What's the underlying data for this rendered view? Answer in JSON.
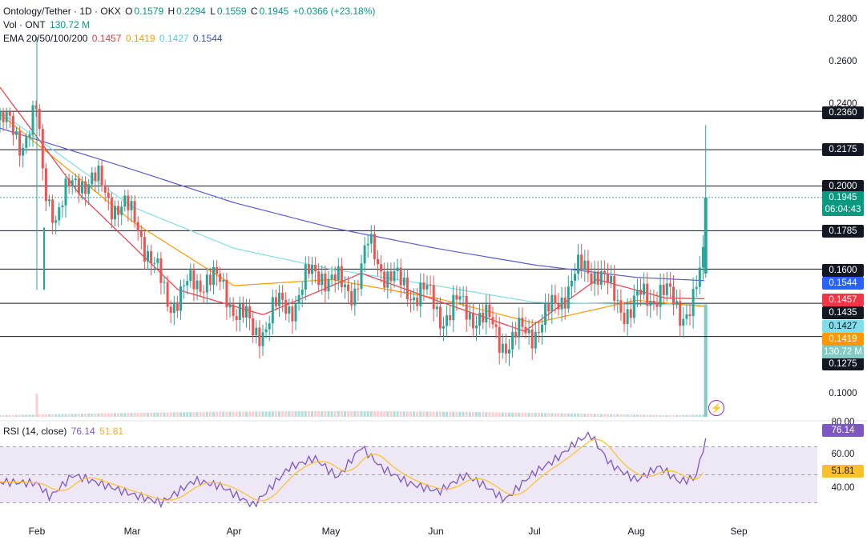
{
  "legend": {
    "symbol": "Ontology/Tether · 1D · OKX",
    "o_label": "O",
    "o": "0.1579",
    "h_label": "H",
    "h": "0.2294",
    "l_label": "L",
    "l": "0.1559",
    "c_label": "C",
    "c": "0.1945",
    "change": "+0.0366 (+23.18%)",
    "vol_label": "Vol · ONT",
    "vol": "130.72 M",
    "ema_label": "EMA 20/50/100/200",
    "ema20": "0.1457",
    "ema50": "0.1419",
    "ema100": "0.1427",
    "ema200": "0.1544",
    "rsi_label": "RSI (14, close)",
    "rsi": "76.14",
    "rsi_ma": "51.81"
  },
  "colors": {
    "up": "#26a69a",
    "down": "#ef5350",
    "ema20": "#f23645",
    "ema50": "#ff9800",
    "ema100": "#80deea",
    "ema200": "#5b5bd6",
    "rsi": "#7e57c2",
    "rsi_ma": "#fbc02d",
    "rsi_band": "#ede7f6",
    "hline": "#131722",
    "price_label": "#089981"
  },
  "price_axis": [
    "0.2800",
    "0.2600",
    "0.2400",
    "0.1000"
  ],
  "level_labels": [
    "0.2360",
    "0.2175",
    "0.2000",
    "0.1785",
    "0.1600",
    "0.1275"
  ],
  "price_badges": {
    "current": "0.1945",
    "countdown": "06:04:43",
    "ema200": "0.1544",
    "ema20": "0.1457",
    "level_1435": "0.1435",
    "ema100": "0.1427",
    "ema50": "0.1419",
    "volume": "130.72 M"
  },
  "rsi_axis": [
    "80.00",
    "60.00",
    "40.00"
  ],
  "rsi_badges": {
    "rsi": "76.14",
    "rsi_ma": "51.81"
  },
  "time_axis": [
    "Feb",
    "Mar",
    "Apr",
    "May",
    "Jun",
    "Jul",
    "Aug",
    "Sep"
  ],
  "alert_icon": "lightning-icon",
  "chart_data": {
    "type": "candlestick",
    "symbol": "Ontology/Tether",
    "interval": "1D",
    "exchange": "OKX",
    "last_candle": {
      "open": 0.1579,
      "high": 0.2294,
      "low": 0.1559,
      "close": 0.1945,
      "volume": "130.72 M"
    },
    "horizontal_levels": [
      0.236,
      0.2175,
      0.2,
      0.1785,
      0.16,
      0.1435,
      0.1275
    ],
    "y_range": [
      0.085,
      0.29
    ],
    "close_path": [
      [
        "Jan 20",
        0.232
      ],
      [
        "Jan 27",
        0.222
      ],
      [
        "Feb 1",
        0.235
      ],
      [
        "Feb 3",
        0.2
      ],
      [
        "Feb 7",
        0.187
      ],
      [
        "Feb 14",
        0.205
      ],
      [
        "Feb 20",
        0.2
      ],
      [
        "Feb 26",
        0.19
      ],
      [
        "Mar 3",
        0.182
      ],
      [
        "Mar 7",
        0.162
      ],
      [
        "Mar 12",
        0.145
      ],
      [
        "Mar 18",
        0.15
      ],
      [
        "Mar 24",
        0.158
      ],
      [
        "Mar 28",
        0.15
      ],
      [
        "Apr 3",
        0.14
      ],
      [
        "Apr 7",
        0.127
      ],
      [
        "Apr 13",
        0.14
      ],
      [
        "Apr 18",
        0.142
      ],
      [
        "Apr 24",
        0.155
      ],
      [
        "Apr 28",
        0.16
      ],
      [
        "May 4",
        0.15
      ],
      [
        "May 8",
        0.152
      ],
      [
        "May 12",
        0.17
      ],
      [
        "May 16",
        0.162
      ],
      [
        "May 22",
        0.15
      ],
      [
        "May 28",
        0.15
      ],
      [
        "Jun 2",
        0.138
      ],
      [
        "Jun 8",
        0.142
      ],
      [
        "Jun 14",
        0.138
      ],
      [
        "Jun 20",
        0.128
      ],
      [
        "Jun 24",
        0.124
      ],
      [
        "Jun 28",
        0.13
      ],
      [
        "Jul 4",
        0.134
      ],
      [
        "Jul 10",
        0.15
      ],
      [
        "Jul 16",
        0.16
      ],
      [
        "Jul 20",
        0.161
      ],
      [
        "Jul 24",
        0.148
      ],
      [
        "Jul 30",
        0.14
      ],
      [
        "Aug 3",
        0.146
      ],
      [
        "Aug 8",
        0.15
      ],
      [
        "Aug 14",
        0.14
      ],
      [
        "Aug 18",
        0.143
      ],
      [
        "Aug 21",
        0.158
      ],
      [
        "Aug 22",
        0.1945
      ]
    ],
    "ema200_path": [
      [
        "Jan 20",
        0.228
      ],
      [
        "Mar 1",
        0.208
      ],
      [
        "Apr 1",
        0.192
      ],
      [
        "May 1",
        0.18
      ],
      [
        "Jun 1",
        0.17
      ],
      [
        "Jul 1",
        0.162
      ],
      [
        "Aug 1",
        0.156
      ],
      [
        "Aug 22",
        0.1544
      ]
    ],
    "ema100_path": [
      [
        "Jan 20",
        0.236
      ],
      [
        "Mar 1",
        0.19
      ],
      [
        "Apr 1",
        0.17
      ],
      [
        "May 1",
        0.16
      ],
      [
        "Jun 1",
        0.152
      ],
      [
        "Jul 1",
        0.144
      ],
      [
        "Aug 1",
        0.143
      ],
      [
        "Aug 22",
        0.1427
      ]
    ],
    "ema50_path": [
      [
        "Jan 20",
        0.235
      ],
      [
        "Mar 1",
        0.183
      ],
      [
        "Apr 1",
        0.152
      ],
      [
        "May 1",
        0.155
      ],
      [
        "Jun 1",
        0.146
      ],
      [
        "Jul 1",
        0.134
      ],
      [
        "Aug 1",
        0.145
      ],
      [
        "Aug 22",
        0.1419
      ]
    ],
    "ema20_path": [
      [
        "Jan 20",
        0.248
      ],
      [
        "Feb 14",
        0.196
      ],
      [
        "Mar 15",
        0.15
      ],
      [
        "Apr 10",
        0.138
      ],
      [
        "May 10",
        0.158
      ],
      [
        "Jun 1",
        0.145
      ],
      [
        "Jun 28",
        0.13
      ],
      [
        "Jul 20",
        0.155
      ],
      [
        "Aug 10",
        0.146
      ],
      [
        "Aug 22",
        0.1457
      ]
    ],
    "rsi_path": [
      [
        "Jan 20",
        45
      ],
      [
        "Feb 1",
        44
      ],
      [
        "Feb 5",
        34
      ],
      [
        "Feb 12",
        50
      ],
      [
        "Feb 20",
        44
      ],
      [
        "Mar 1",
        36
      ],
      [
        "Mar 10",
        30
      ],
      [
        "Mar 20",
        46
      ],
      [
        "Mar 28",
        42
      ],
      [
        "Apr 7",
        28
      ],
      [
        "Apr 18",
        55
      ],
      [
        "Apr 26",
        62
      ],
      [
        "May 3",
        48
      ],
      [
        "May 10",
        70
      ],
      [
        "May 16",
        55
      ],
      [
        "May 24",
        44
      ],
      [
        "Jun 2",
        38
      ],
      [
        "Jun 10",
        50
      ],
      [
        "Jun 16",
        42
      ],
      [
        "Jun 22",
        32
      ],
      [
        "Jun 30",
        50
      ],
      [
        "Jul 8",
        62
      ],
      [
        "Jul 14",
        74
      ],
      [
        "Jul 18",
        79
      ],
      [
        "Jul 24",
        58
      ],
      [
        "Aug 1",
        46
      ],
      [
        "Aug 8",
        56
      ],
      [
        "Aug 14",
        45
      ],
      [
        "Aug 19",
        48
      ],
      [
        "Aug 22",
        76.14
      ]
    ],
    "rsi_ma_last": 51.81,
    "rsi_range": [
      20,
      85
    ],
    "x_ticks": [
      "Feb",
      "Mar",
      "Apr",
      "May",
      "Jun",
      "Jul",
      "Aug",
      "Sep"
    ]
  }
}
